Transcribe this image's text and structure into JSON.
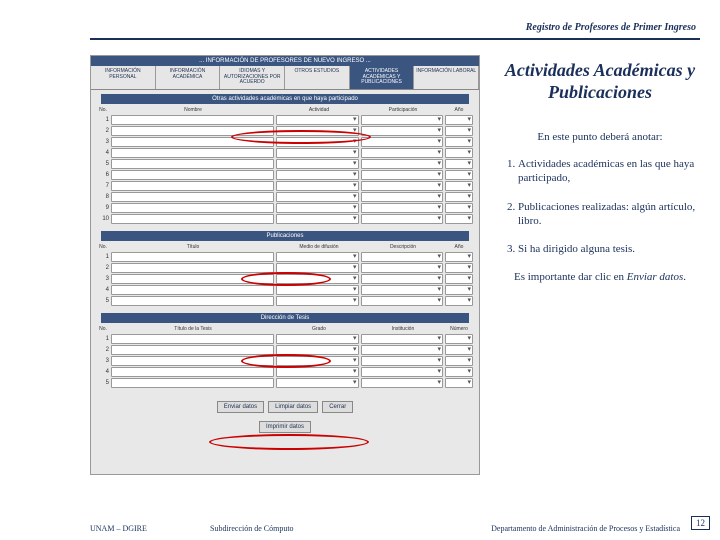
{
  "header": {
    "title": "Registro de Profesores de Primer Ingreso"
  },
  "screenshot": {
    "app_title": "... INFORMACIÓN DE PROFESORES DE NUEVO INGRESO ...",
    "tabs": [
      {
        "label": "INFORMACIÓN PERSONAL"
      },
      {
        "label": "INFORMACIÓN ACADÉMICA"
      },
      {
        "label": "IDIOMAS Y AUTORIZACIONES POR ACUERDO"
      },
      {
        "label": "OTROS ESTUDIOS"
      },
      {
        "label": "ACTIVIDADES ACADÉMICAS Y PUBLICACIONES"
      },
      {
        "label": "INFORMACIÓN LABORAL"
      }
    ],
    "section1": {
      "title": "Otras actividades académicas en que haya participado",
      "subtitle": "Instructor",
      "cols": {
        "c1": "No.",
        "c2": "Nombre",
        "c3": "Actividad",
        "c4": "Participación",
        "c5": "Año"
      },
      "rows": [
        "1",
        "2",
        "3",
        "4",
        "5",
        "6",
        "7",
        "8",
        "9",
        "10"
      ]
    },
    "section2": {
      "title": "Publicaciones",
      "cols": {
        "c1": "No.",
        "c2": "Título",
        "c3": "Medio de difusión",
        "c4": "Descripción",
        "c5": "Año"
      },
      "rows": [
        "1",
        "2",
        "3",
        "4",
        "5"
      ]
    },
    "section3": {
      "title": "Dirección de Tesis",
      "cols": {
        "c1": "No.",
        "c2": "Título de la Tesis",
        "c3": "Grado",
        "c4": "Institución",
        "c5": "Número"
      },
      "rows": [
        "1",
        "2",
        "3",
        "4",
        "5"
      ]
    },
    "buttons": {
      "b1": "Enviar datos",
      "b2": "Limpiar datos",
      "b3": "Cerrar",
      "b4": "Imprimir datos"
    }
  },
  "right": {
    "heading": "Actividades Académicas y Publicaciones",
    "intro": "En este punto deberá anotar:",
    "items": [
      "Actividades académicas en las que haya participado,",
      "Publicaciones realizadas: algún artículo, libro.",
      "Si ha dirigido alguna tesis."
    ],
    "closing_pre": "Es importante dar clic en ",
    "closing_em": "Enviar datos",
    "closing_post": "."
  },
  "footer": {
    "left": "UNAM – DGIRE",
    "center": "Subdirección de Cómputo",
    "right": "Departamento de Administración de Procesos y Estadística",
    "page": "12"
  },
  "colors": {
    "accent": "#1a2f5a",
    "highlight": "#cc0000"
  }
}
